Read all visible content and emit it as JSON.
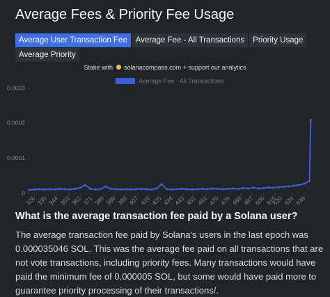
{
  "header": {
    "title": "Average Fees & Priority Fee Usage"
  },
  "tabs": [
    "Average User Transaction Fee",
    "Average Fee - All Transactions",
    "Priority Usage",
    "Average Priority"
  ],
  "promo": {
    "prefix": "Stake with",
    "link": "solanacompass.com + support our analytics"
  },
  "chart_data": {
    "type": "line",
    "series": [
      {
        "name": "Average Fee - All Transactions",
        "color": "#3d5fd6",
        "x": [
          322,
          326,
          330,
          334,
          338,
          342,
          346,
          350,
          354,
          358,
          362,
          366,
          370,
          374,
          378,
          382,
          386,
          390,
          394,
          398,
          402,
          406,
          410,
          414,
          418,
          422,
          426,
          430,
          434,
          438,
          442,
          446,
          450,
          454,
          458,
          462,
          466,
          470,
          474,
          478,
          482,
          486,
          490,
          494,
          498,
          502,
          506,
          510,
          514,
          518,
          522,
          526,
          530,
          534,
          538,
          542,
          543
        ],
        "values": [
          1e-05,
          1.1e-05,
          1.2e-05,
          1.1e-05,
          1.2e-05,
          1.1e-05,
          1.3e-05,
          1.2e-05,
          1.1e-05,
          1.3e-05,
          1.6e-05,
          2.4e-05,
          1.3e-05,
          1.1e-05,
          1.2e-05,
          2e-05,
          1.3e-05,
          1.2e-05,
          1.1e-05,
          1.2e-05,
          1.1e-05,
          1.2e-05,
          1.3e-05,
          1.2e-05,
          1.1e-05,
          1.4e-05,
          2.6e-05,
          1.2e-05,
          1.1e-05,
          1.2e-05,
          1.3e-05,
          1.2e-05,
          1.1e-05,
          1.2e-05,
          1.3e-05,
          1.2e-05,
          1.4e-05,
          1.3e-05,
          1.2e-05,
          1.3e-05,
          1.4e-05,
          1.3e-05,
          1.5e-05,
          1.4e-05,
          1.6e-05,
          1.4e-05,
          1.5e-05,
          1.7e-05,
          1.6e-05,
          1.8e-05,
          1.9e-05,
          2e-05,
          2.2e-05,
          2.4e-05,
          2.8e-05,
          3.5e-05,
          0.00021
        ]
      }
    ],
    "xlim": [
      322,
      545
    ],
    "xticks": [
      326,
      335,
      344,
      353,
      362,
      371,
      380,
      389,
      398,
      407,
      416,
      425,
      434,
      443,
      452,
      461,
      470,
      479,
      488,
      497,
      506,
      515,
      520,
      529,
      538
    ],
    "ylim": [
      0,
      0.0003
    ],
    "yticks": [
      0,
      0.0001,
      0.0002,
      0.0003
    ]
  },
  "article": {
    "heading": "What is the average transaction fee paid by a Solana user?",
    "body": "The average transaction fee paid by Solana's users in the last epoch was 0.000035046 SOL. This was the average fee paid on all transactions that are not vote transactions, including priority fees. Many transactions would have paid the minimum fee of 0.000005 SOL, but some would have paid more to guarantee priority processing of their transactions/."
  }
}
